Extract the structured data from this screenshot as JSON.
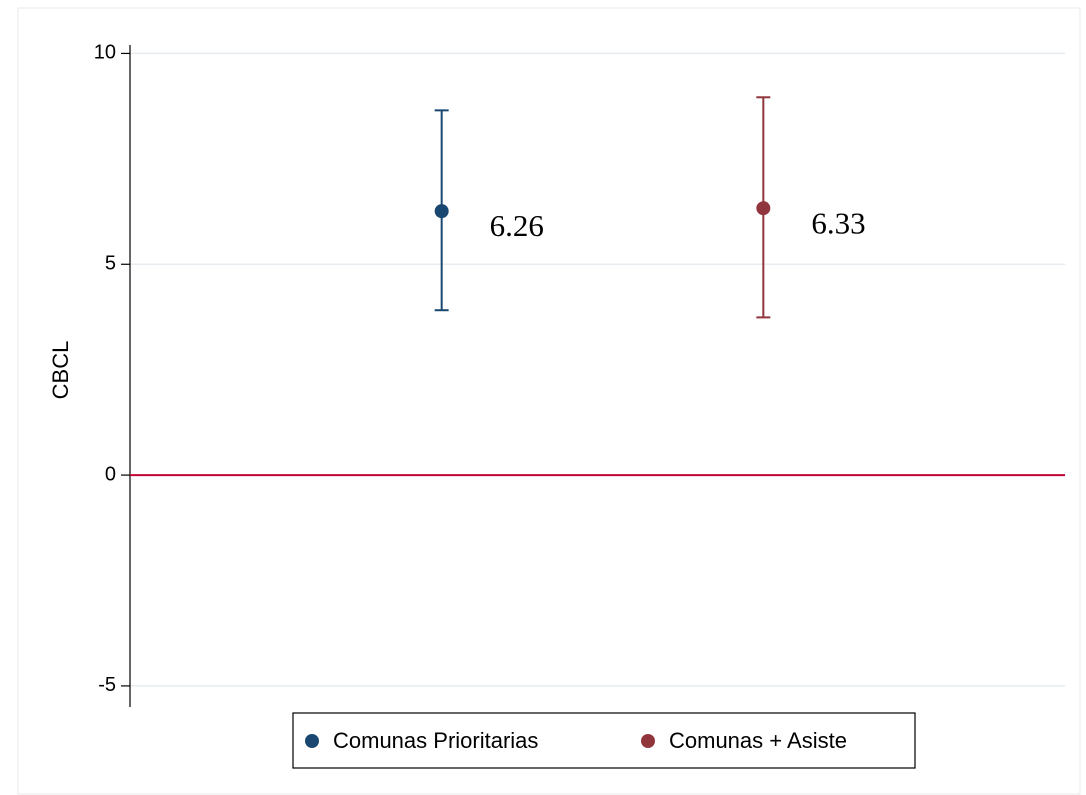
{
  "chart_data": {
    "type": "errorbar",
    "y_label": "CBCL",
    "ylim": [
      -5.5,
      10.2
    ],
    "yticks": [
      -5,
      0,
      5,
      10
    ],
    "grid": true,
    "reference_line": {
      "value": 0,
      "color": "#c10534"
    },
    "legend": "bottom",
    "series": [
      {
        "name": "Comunas Prioritarias",
        "color": "#1a476f",
        "values": [
          6.26
        ],
        "ci_low": [
          3.91
        ],
        "ci_high": [
          8.65
        ]
      },
      {
        "name": "Comunas + Asiste",
        "color": "#90353b",
        "values": [
          6.33
        ],
        "ci_low": [
          3.74
        ],
        "ci_high": [
          8.96
        ]
      }
    ]
  }
}
